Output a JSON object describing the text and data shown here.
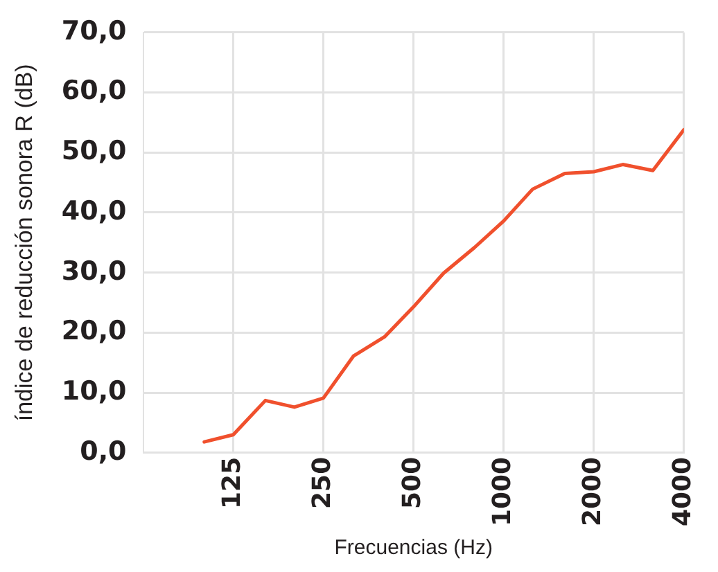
{
  "chart_data": {
    "type": "line",
    "xlabel": "Frecuencias (Hz)",
    "ylabel": "índice de reducción sonora R (dB)",
    "x": [
      100,
      125,
      160,
      200,
      250,
      315,
      400,
      500,
      630,
      800,
      1000,
      1250,
      1600,
      2000,
      2500,
      3150,
      4000
    ],
    "series": [
      {
        "color": "#f0502d",
        "values": [
          1.8,
          3.0,
          8.7,
          7.6,
          9.1,
          16.1,
          19.3,
          24.3,
          29.9,
          34.2,
          38.6,
          43.9,
          46.5,
          46.8,
          48.0,
          47.0,
          53.8
        ]
      }
    ],
    "log": "x",
    "xlim": [
      62.5,
      4000
    ],
    "xticks": [
      125,
      250,
      500,
      1000,
      2000,
      4000
    ],
    "ylim": [
      0,
      70
    ],
    "yticks": [
      {
        "value": 0,
        "label": "0,0"
      },
      {
        "value": 10,
        "label": "10,0"
      },
      {
        "value": 20,
        "label": "20,0"
      },
      {
        "value": 30,
        "label": "30,0"
      },
      {
        "value": 40,
        "label": "40,0"
      },
      {
        "value": 50,
        "label": "50,0"
      },
      {
        "value": 60,
        "label": "60,0"
      },
      {
        "value": 70,
        "label": "70,0"
      }
    ],
    "grid": true,
    "legend": false,
    "marker": "none",
    "line_style": "solid"
  }
}
